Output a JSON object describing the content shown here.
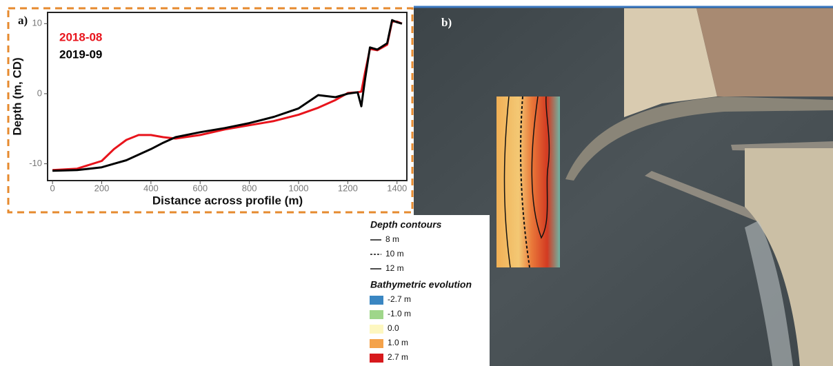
{
  "chart_data": {
    "type": "line",
    "panel_label": "a)",
    "x_label": "Distance across profile (m)",
    "y_label": "Depth (m, CD)",
    "x": [
      0,
      100,
      200,
      250,
      300,
      350,
      400,
      450,
      500,
      600,
      700,
      800,
      900,
      1000,
      1080,
      1150,
      1200,
      1240,
      1255,
      1270,
      1290,
      1320,
      1360,
      1380,
      1400,
      1420
    ],
    "series": [
      {
        "name": "2018-08",
        "color": "#e8141c",
        "values": [
          -10.9,
          -10.7,
          -9.6,
          -7.9,
          -6.6,
          -5.9,
          -5.9,
          -6.2,
          -6.4,
          -5.9,
          -5.1,
          -4.5,
          -3.9,
          -3.0,
          -2.0,
          -0.9,
          0.1,
          0.2,
          0.3,
          3,
          6.4,
          6.2,
          7,
          10.3,
          10.3,
          10
        ]
      },
      {
        "name": "2019-09",
        "color": "#000000",
        "values": [
          -11,
          -10.9,
          -10.5,
          -10.0,
          -9.5,
          -8.7,
          -7.9,
          -7.0,
          -6.2,
          -5.5,
          -4.9,
          -4.2,
          -3.3,
          -2.1,
          -0.2,
          -0.5,
          0,
          0.2,
          -1.8,
          2,
          6.6,
          6.3,
          7.2,
          10.5,
          10.2,
          10
        ]
      }
    ],
    "xlim": [
      -20,
      1440
    ],
    "xticks": [
      0,
      200,
      400,
      600,
      800,
      1000,
      1200,
      1400
    ],
    "ylim": [
      -12.4,
      11.6
    ],
    "yticks": [
      -10,
      0,
      10
    ]
  },
  "map_panel": {
    "panel_label": "b)",
    "contours_title": "Depth contours",
    "contours": [
      {
        "label": "8 m",
        "dash": "solid"
      },
      {
        "label": "10 m",
        "dash": "dashed"
      },
      {
        "label": "12 m",
        "dash": "solid"
      }
    ],
    "evolution_title": "Bathymetric evolution",
    "evolution": [
      {
        "label": "-2.7 m",
        "color": "#3a86c2"
      },
      {
        "label": "-1.0 m",
        "color": "#9fd68a"
      },
      {
        "label": "0.0",
        "color": "#fdf7c0"
      },
      {
        "label": "1.0 m",
        "color": "#f4a24a"
      },
      {
        "label": "2.7 m",
        "color": "#d7191c"
      }
    ]
  }
}
